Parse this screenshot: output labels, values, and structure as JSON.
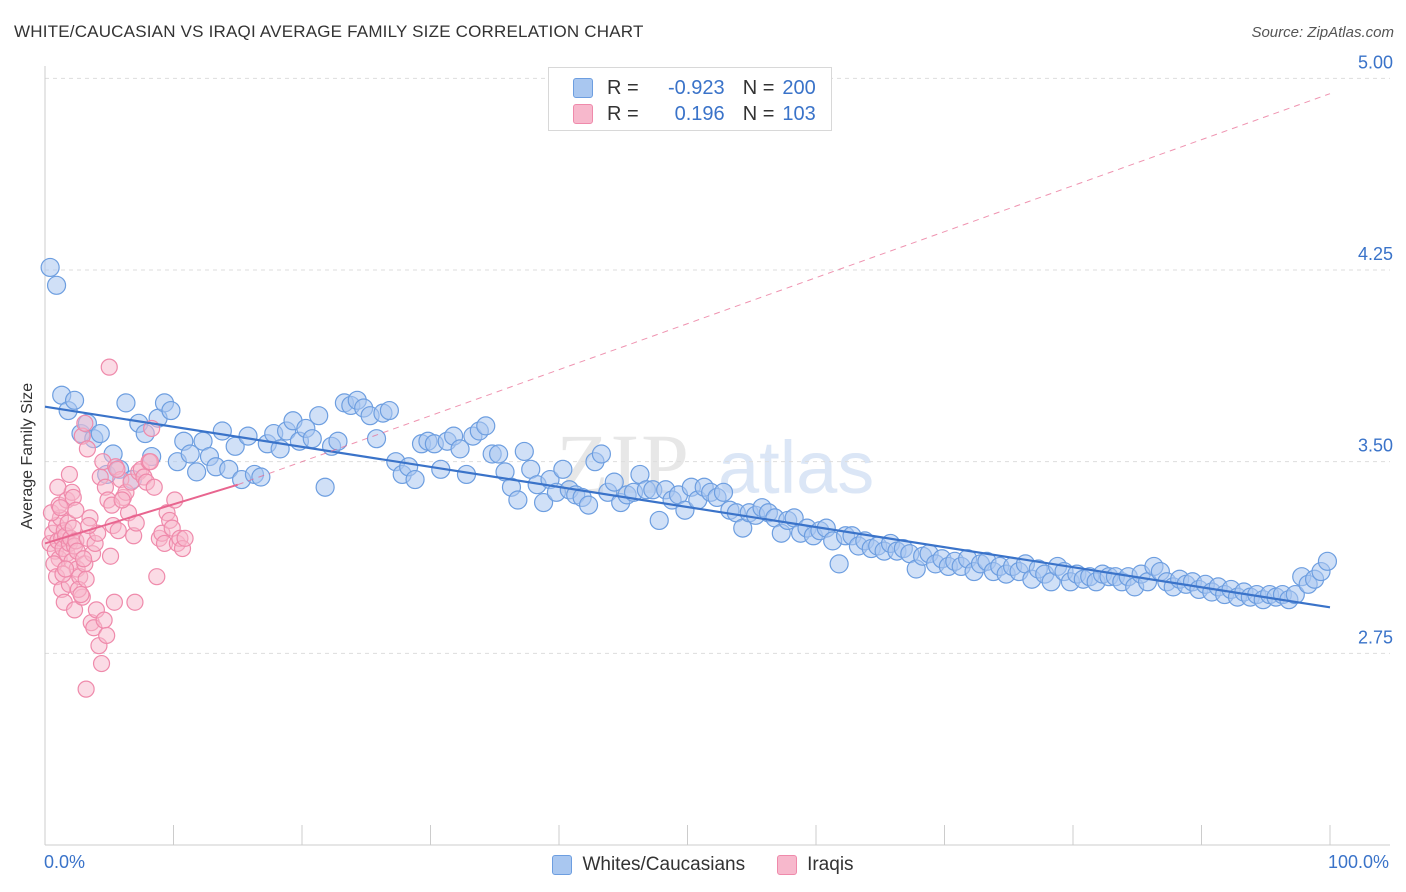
{
  "title": "WHITE/CAUCASIAN VS IRAQI AVERAGE FAMILY SIZE CORRELATION CHART",
  "source": "Source: ZipAtlas.com",
  "watermark": {
    "zip": "ZIP",
    "atlas": "atlas"
  },
  "legend": {
    "r_label": "R =",
    "n_label": "N =",
    "series": [
      {
        "name": "Whites/Caucasians",
        "r": "-0.923",
        "n": "200"
      },
      {
        "name": "Iraqis",
        "r": "0.196",
        "n": "103"
      }
    ]
  },
  "colors": {
    "blue": "#3a73c9",
    "blue_fill": "#a9c7f0",
    "blue_stroke": "#6d9ee0",
    "pink": "#e8658f",
    "pink_fill": "#f7b8cc",
    "pink_stroke": "#ef8aab",
    "grid": "#dddddd",
    "axis": "#cccccc",
    "tick_label": "#3a73c9"
  },
  "chart_data": {
    "type": "scatter",
    "title": "WHITE/CAUCASIAN VS IRAQI AVERAGE FAMILY SIZE CORRELATION CHART",
    "xlabel": "",
    "ylabel": "Average Family Size",
    "xlim": [
      0,
      100
    ],
    "ylim": [
      2.0,
      5.1
    ],
    "x_tick_labels": [
      "0.0%",
      "100.0%"
    ],
    "y_ticks": [
      5.0,
      4.25,
      3.5,
      2.75
    ],
    "y_tick_labels": [
      "5.00",
      "4.25",
      "3.50",
      "2.75"
    ],
    "series": [
      {
        "name": "Whites/Caucasians",
        "trend": {
          "x0": 0,
          "y0": 3.715,
          "x1": 100,
          "y1": 2.93
        },
        "points": [
          [
            0.4,
            4.26
          ],
          [
            0.9,
            4.19
          ],
          [
            1.3,
            3.76
          ],
          [
            1.8,
            3.7
          ],
          [
            2.3,
            3.74
          ],
          [
            2.8,
            3.61
          ],
          [
            3.3,
            3.65
          ],
          [
            3.8,
            3.59
          ],
          [
            4.3,
            3.61
          ],
          [
            4.8,
            3.45
          ],
          [
            5.3,
            3.53
          ],
          [
            5.8,
            3.47
          ],
          [
            6.3,
            3.73
          ],
          [
            6.8,
            3.43
          ],
          [
            7.3,
            3.65
          ],
          [
            7.8,
            3.61
          ],
          [
            8.3,
            3.52
          ],
          [
            8.8,
            3.67
          ],
          [
            9.3,
            3.73
          ],
          [
            9.8,
            3.7
          ],
          [
            10.3,
            3.5
          ],
          [
            10.8,
            3.58
          ],
          [
            11.3,
            3.53
          ],
          [
            11.8,
            3.46
          ],
          [
            12.3,
            3.58
          ],
          [
            12.8,
            3.52
          ],
          [
            13.3,
            3.48
          ],
          [
            13.8,
            3.62
          ],
          [
            14.3,
            3.47
          ],
          [
            14.8,
            3.56
          ],
          [
            15.3,
            3.43
          ],
          [
            15.8,
            3.6
          ],
          [
            16.3,
            3.45
          ],
          [
            16.8,
            3.44
          ],
          [
            17.3,
            3.57
          ],
          [
            17.8,
            3.61
          ],
          [
            18.3,
            3.55
          ],
          [
            18.8,
            3.62
          ],
          [
            19.3,
            3.66
          ],
          [
            19.8,
            3.58
          ],
          [
            20.3,
            3.63
          ],
          [
            20.8,
            3.59
          ],
          [
            21.3,
            3.68
          ],
          [
            21.8,
            3.4
          ],
          [
            22.3,
            3.56
          ],
          [
            22.8,
            3.58
          ],
          [
            23.3,
            3.73
          ],
          [
            23.8,
            3.72
          ],
          [
            24.3,
            3.74
          ],
          [
            24.8,
            3.71
          ],
          [
            25.3,
            3.68
          ],
          [
            25.8,
            3.59
          ],
          [
            26.3,
            3.69
          ],
          [
            26.8,
            3.7
          ],
          [
            27.3,
            3.5
          ],
          [
            27.8,
            3.45
          ],
          [
            28.3,
            3.48
          ],
          [
            28.8,
            3.43
          ],
          [
            29.3,
            3.57
          ],
          [
            29.8,
            3.58
          ],
          [
            30.3,
            3.57
          ],
          [
            30.8,
            3.47
          ],
          [
            31.3,
            3.58
          ],
          [
            31.8,
            3.6
          ],
          [
            32.3,
            3.55
          ],
          [
            32.8,
            3.45
          ],
          [
            33.3,
            3.6
          ],
          [
            33.8,
            3.62
          ],
          [
            34.3,
            3.64
          ],
          [
            34.8,
            3.53
          ],
          [
            35.3,
            3.53
          ],
          [
            35.8,
            3.46
          ],
          [
            36.3,
            3.4
          ],
          [
            36.8,
            3.35
          ],
          [
            37.3,
            3.54
          ],
          [
            37.8,
            3.47
          ],
          [
            38.3,
            3.41
          ],
          [
            38.8,
            3.34
          ],
          [
            39.3,
            3.43
          ],
          [
            39.8,
            3.38
          ],
          [
            40.3,
            3.47
          ],
          [
            40.8,
            3.39
          ],
          [
            41.3,
            3.37
          ],
          [
            41.8,
            3.36
          ],
          [
            42.3,
            3.33
          ],
          [
            42.8,
            3.5
          ],
          [
            43.3,
            3.53
          ],
          [
            43.8,
            3.38
          ],
          [
            44.3,
            3.42
          ],
          [
            44.8,
            3.34
          ],
          [
            45.3,
            3.37
          ],
          [
            45.8,
            3.38
          ],
          [
            46.3,
            3.45
          ],
          [
            46.8,
            3.39
          ],
          [
            47.3,
            3.39
          ],
          [
            47.8,
            3.27
          ],
          [
            48.3,
            3.39
          ],
          [
            48.8,
            3.35
          ],
          [
            49.3,
            3.37
          ],
          [
            49.8,
            3.31
          ],
          [
            50.3,
            3.4
          ],
          [
            50.8,
            3.35
          ],
          [
            51.3,
            3.4
          ],
          [
            51.8,
            3.38
          ],
          [
            52.3,
            3.36
          ],
          [
            52.8,
            3.38
          ],
          [
            53.3,
            3.31
          ],
          [
            53.8,
            3.3
          ],
          [
            54.3,
            3.24
          ],
          [
            54.8,
            3.3
          ],
          [
            55.3,
            3.29
          ],
          [
            55.8,
            3.32
          ],
          [
            56.3,
            3.3
          ],
          [
            56.8,
            3.28
          ],
          [
            57.3,
            3.22
          ],
          [
            57.8,
            3.27
          ],
          [
            58.3,
            3.28
          ],
          [
            58.8,
            3.22
          ],
          [
            59.3,
            3.24
          ],
          [
            59.8,
            3.21
          ],
          [
            60.3,
            3.23
          ],
          [
            60.8,
            3.24
          ],
          [
            61.3,
            3.19
          ],
          [
            61.8,
            3.1
          ],
          [
            62.3,
            3.21
          ],
          [
            62.8,
            3.21
          ],
          [
            63.3,
            3.17
          ],
          [
            63.8,
            3.19
          ],
          [
            64.3,
            3.16
          ],
          [
            64.8,
            3.17
          ],
          [
            65.3,
            3.15
          ],
          [
            65.8,
            3.18
          ],
          [
            66.3,
            3.15
          ],
          [
            66.8,
            3.16
          ],
          [
            67.3,
            3.14
          ],
          [
            67.8,
            3.08
          ],
          [
            68.3,
            3.13
          ],
          [
            68.8,
            3.14
          ],
          [
            69.3,
            3.1
          ],
          [
            69.8,
            3.12
          ],
          [
            70.3,
            3.09
          ],
          [
            70.8,
            3.11
          ],
          [
            71.3,
            3.09
          ],
          [
            71.8,
            3.12
          ],
          [
            72.3,
            3.07
          ],
          [
            72.8,
            3.1
          ],
          [
            73.3,
            3.11
          ],
          [
            73.8,
            3.07
          ],
          [
            74.3,
            3.09
          ],
          [
            74.8,
            3.06
          ],
          [
            75.3,
            3.09
          ],
          [
            75.8,
            3.07
          ],
          [
            76.3,
            3.1
          ],
          [
            76.8,
            3.04
          ],
          [
            77.3,
            3.08
          ],
          [
            77.8,
            3.06
          ],
          [
            78.3,
            3.03
          ],
          [
            78.8,
            3.09
          ],
          [
            79.3,
            3.07
          ],
          [
            79.8,
            3.03
          ],
          [
            80.3,
            3.06
          ],
          [
            80.8,
            3.04
          ],
          [
            81.3,
            3.05
          ],
          [
            81.8,
            3.03
          ],
          [
            82.3,
            3.06
          ],
          [
            82.8,
            3.05
          ],
          [
            83.3,
            3.05
          ],
          [
            83.8,
            3.03
          ],
          [
            84.3,
            3.05
          ],
          [
            84.8,
            3.01
          ],
          [
            85.3,
            3.06
          ],
          [
            85.8,
            3.03
          ],
          [
            86.3,
            3.09
          ],
          [
            86.8,
            3.07
          ],
          [
            87.3,
            3.03
          ],
          [
            87.8,
            3.01
          ],
          [
            88.3,
            3.04
          ],
          [
            88.8,
            3.02
          ],
          [
            89.3,
            3.03
          ],
          [
            89.8,
            3.0
          ],
          [
            90.3,
            3.02
          ],
          [
            90.8,
            2.99
          ],
          [
            91.3,
            3.01
          ],
          [
            91.8,
            2.98
          ],
          [
            92.3,
            3.0
          ],
          [
            92.8,
            2.97
          ],
          [
            93.3,
            2.99
          ],
          [
            93.8,
            2.97
          ],
          [
            94.3,
            2.98
          ],
          [
            94.8,
            2.96
          ],
          [
            95.3,
            2.98
          ],
          [
            95.8,
            2.97
          ],
          [
            96.3,
            2.98
          ],
          [
            96.8,
            2.96
          ],
          [
            97.3,
            2.98
          ],
          [
            97.8,
            3.05
          ],
          [
            98.3,
            3.02
          ],
          [
            98.8,
            3.04
          ],
          [
            99.3,
            3.07
          ],
          [
            99.8,
            3.11
          ]
        ]
      },
      {
        "name": "Iraqis",
        "trend": {
          "x0": 0,
          "y0": 3.18,
          "x1": 15,
          "y1": 3.41
        },
        "trend_extension": {
          "x0": 15,
          "y0": 3.41,
          "x1": 100,
          "y1": 4.94
        },
        "points": [
          [
            0.4,
            3.18
          ],
          [
            0.6,
            3.22
          ],
          [
            0.8,
            3.15
          ],
          [
            0.9,
            3.25
          ],
          [
            1.0,
            3.19
          ],
          [
            1.1,
            3.12
          ],
          [
            1.2,
            3.28
          ],
          [
            1.3,
            3.2
          ],
          [
            1.4,
            3.16
          ],
          [
            1.5,
            3.23
          ],
          [
            1.6,
            3.21
          ],
          [
            1.7,
            3.14
          ],
          [
            1.8,
            3.26
          ],
          [
            1.9,
            3.18
          ],
          [
            2.0,
            3.2
          ],
          [
            2.1,
            3.11
          ],
          [
            2.2,
            3.24
          ],
          [
            2.3,
            3.17
          ],
          [
            2.4,
            3.19
          ],
          [
            2.5,
            3.08
          ],
          [
            0.5,
            3.3
          ],
          [
            0.7,
            3.1
          ],
          [
            0.9,
            3.05
          ],
          [
            1.1,
            3.33
          ],
          [
            1.3,
            3.0
          ],
          [
            1.5,
            2.95
          ],
          [
            1.7,
            3.35
          ],
          [
            1.9,
            3.02
          ],
          [
            2.1,
            3.38
          ],
          [
            2.3,
            2.92
          ],
          [
            2.5,
            3.15
          ],
          [
            2.7,
            3.05
          ],
          [
            2.9,
            2.97
          ],
          [
            3.1,
            3.1
          ],
          [
            3.3,
            3.2
          ],
          [
            3.5,
            3.28
          ],
          [
            3.7,
            3.14
          ],
          [
            3.9,
            3.18
          ],
          [
            4.1,
            3.22
          ],
          [
            4.3,
            3.44
          ],
          [
            4.5,
            3.5
          ],
          [
            4.7,
            3.4
          ],
          [
            4.9,
            3.35
          ],
          [
            5.1,
            3.13
          ],
          [
            5.3,
            3.25
          ],
          [
            5.5,
            3.48
          ],
          [
            5.7,
            3.23
          ],
          [
            5.9,
            3.43
          ],
          [
            6.1,
            3.36
          ],
          [
            6.3,
            3.38
          ],
          [
            6.5,
            3.3
          ],
          [
            6.7,
            3.42
          ],
          [
            6.9,
            3.21
          ],
          [
            7.1,
            3.26
          ],
          [
            7.3,
            3.46
          ],
          [
            7.5,
            3.47
          ],
          [
            7.7,
            3.44
          ],
          [
            7.9,
            3.42
          ],
          [
            8.1,
            3.5
          ],
          [
            8.3,
            3.63
          ],
          [
            8.5,
            3.4
          ],
          [
            8.7,
            3.05
          ],
          [
            8.9,
            3.2
          ],
          [
            9.1,
            3.22
          ],
          [
            9.3,
            3.18
          ],
          [
            9.5,
            3.3
          ],
          [
            9.7,
            3.27
          ],
          [
            9.9,
            3.24
          ],
          [
            10.1,
            3.35
          ],
          [
            10.3,
            3.18
          ],
          [
            10.5,
            3.2
          ],
          [
            10.7,
            3.16
          ],
          [
            1.0,
            3.4
          ],
          [
            1.2,
            3.32
          ],
          [
            1.4,
            3.06
          ],
          [
            1.6,
            3.08
          ],
          [
            2.2,
            3.36
          ],
          [
            2.4,
            3.31
          ],
          [
            2.6,
            3.0
          ],
          [
            2.8,
            2.98
          ],
          [
            3.0,
            3.12
          ],
          [
            3.2,
            3.04
          ],
          [
            3.4,
            3.25
          ],
          [
            3.6,
            2.87
          ],
          [
            3.8,
            2.85
          ],
          [
            4.0,
            2.92
          ],
          [
            4.2,
            2.78
          ],
          [
            4.4,
            2.71
          ],
          [
            4.6,
            2.88
          ],
          [
            4.8,
            2.82
          ],
          [
            2.9,
            3.6
          ],
          [
            3.1,
            3.65
          ],
          [
            3.3,
            3.55
          ],
          [
            5.0,
            3.87
          ],
          [
            5.2,
            3.33
          ],
          [
            5.4,
            2.95
          ],
          [
            5.6,
            3.47
          ],
          [
            7.0,
            2.95
          ],
          [
            8.2,
            3.5
          ],
          [
            10.9,
            3.2
          ],
          [
            3.2,
            2.61
          ],
          [
            6.0,
            3.35
          ],
          [
            1.9,
            3.45
          ]
        ]
      }
    ]
  }
}
